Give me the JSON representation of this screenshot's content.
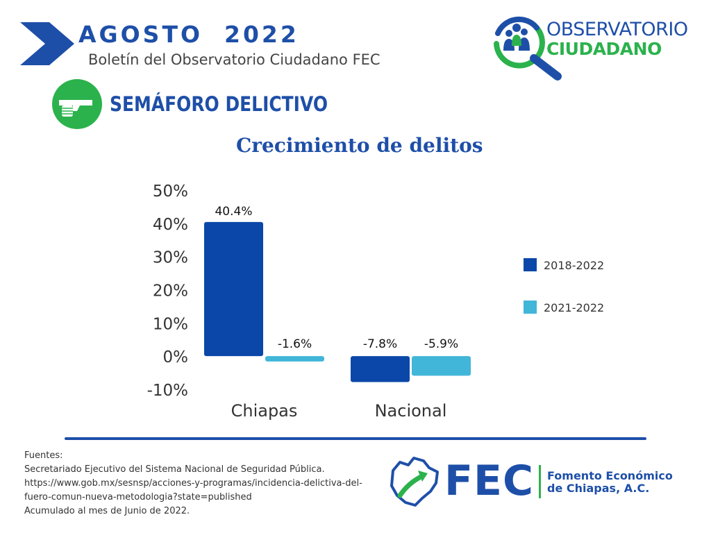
{
  "header": {
    "month": "AGOSTO  2022",
    "bulletin": "Boletín del Observatorio Ciudadano FEC"
  },
  "brand": {
    "observatorio_top": "OBSERVATORIO",
    "observatorio_bottom": "CIUDADANO"
  },
  "section": {
    "title": "SEMÁFORO DELICTIVO"
  },
  "chart_data": {
    "type": "bar",
    "title": "Crecimiento de delitos",
    "categories": [
      "Chiapas",
      "Nacional"
    ],
    "series": [
      {
        "name": "2018-2022",
        "values": [
          40.4,
          -7.8
        ],
        "labels": [
          "40.4%",
          "-7.8%"
        ],
        "color": "#0a47a8"
      },
      {
        "name": "2021-2022",
        "values": [
          -1.6,
          -5.9
        ],
        "labels": [
          "-1.6%",
          "-5.9%"
        ],
        "color": "#41b6d8"
      }
    ],
    "ylim": [
      -10,
      50
    ],
    "yticks": [
      "-10%",
      "0%",
      "10%",
      "20%",
      "30%",
      "40%",
      "50%"
    ],
    "ytick_values": [
      -10,
      0,
      10,
      20,
      30,
      40,
      50
    ],
    "legend_position": "right",
    "grid": false
  },
  "footer": {
    "sources_lines": [
      "Fuentes:",
      "Secretariado Ejecutivo del Sistema Nacional de Seguridad Pública.",
      "https://www.gob.mx/sesnsp/acciones-y-programas/incidencia-delictiva-del-",
      "fuero-comun-nueva-metodologia?state=published",
      "Acumulado al mes de Junio de 2022."
    ],
    "fec_word": "FEC",
    "fec_name_line1": "Fomento Económico",
    "fec_name_line2": "de Chiapas, A.C."
  },
  "colors": {
    "brand_blue": "#1e4fa8",
    "brand_green": "#2bb24c"
  }
}
